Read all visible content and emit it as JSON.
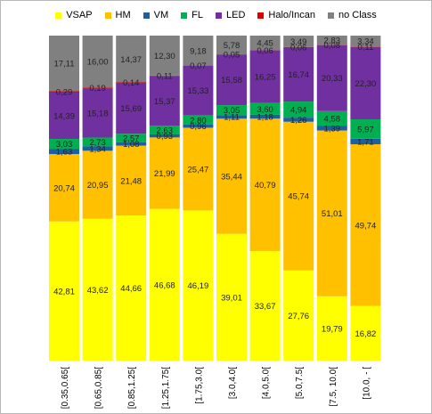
{
  "chart_data": {
    "type": "bar",
    "stacked": true,
    "percent": true,
    "categories": [
      "[0.35,0.65[",
      "[0.65,0.85[",
      "[0.85,1.25[",
      "[1.25,1.75[",
      "[1.75,3.0[",
      "[3.0,4.0[",
      "[4.0,5.0[",
      "[5.0,7.5[",
      "[7.5, 10.0[",
      "[10.0, - ["
    ],
    "series": [
      {
        "name": "VSAP",
        "color": "#ffff00",
        "values": [
          42.81,
          43.62,
          44.66,
          46.68,
          46.19,
          39.01,
          33.67,
          27.76,
          19.79,
          16.82
        ]
      },
      {
        "name": "HM",
        "color": "#ffc000",
        "values": [
          20.74,
          20.95,
          21.48,
          21.99,
          25.47,
          35.44,
          40.79,
          45.74,
          51.01,
          49.74
        ]
      },
      {
        "name": "VM",
        "color": "#1f5fa0",
        "values": [
          1.63,
          1.34,
          1.08,
          0.93,
          0.96,
          1.11,
          1.18,
          1.26,
          1.39,
          1.71
        ]
      },
      {
        "name": "FL",
        "color": "#00b050",
        "values": [
          3.03,
          2.73,
          2.57,
          2.63,
          2.8,
          3.05,
          3.6,
          4.94,
          4.58,
          5.97
        ]
      },
      {
        "name": "LED",
        "color": "#7030a0",
        "values": [
          14.39,
          15.18,
          15.69,
          15.37,
          15.33,
          15.58,
          16.25,
          16.74,
          20.33,
          22.3
        ]
      },
      {
        "name": "Halo/Incan",
        "color": "#e00000",
        "values": [
          0.29,
          0.19,
          0.14,
          0.11,
          0.07,
          0.05,
          0.06,
          0.06,
          0.08,
          0.11
        ]
      },
      {
        "name": "no Class",
        "color": "#808080",
        "values": [
          17.11,
          16.0,
          14.37,
          12.3,
          9.18,
          5.78,
          4.45,
          3.49,
          2.83,
          3.34
        ]
      }
    ],
    "value_labels": [
      [
        "42,81",
        "20,74",
        "1,63",
        "3,03",
        "14,39",
        "0,29",
        "17,11"
      ],
      [
        "43,62",
        "20,95",
        "1,34",
        "2,73",
        "15,18",
        "0,19",
        "16,00"
      ],
      [
        "44,66",
        "21,48",
        "1,08",
        "2,57",
        "15,69",
        "0,14",
        "14,37"
      ],
      [
        "46,68",
        "21,99",
        "0,93",
        "2,63",
        "15,37",
        "0,11",
        "12,30"
      ],
      [
        "46,19",
        "25,47",
        "0,96",
        "2,80",
        "15,33",
        "0,07",
        "9,18"
      ],
      [
        "39,01",
        "35,44",
        "1,11",
        "3,05",
        "15,58",
        "0,05",
        "5,78"
      ],
      [
        "33,67",
        "40,79",
        "1,18",
        "3,60",
        "16,25",
        "0,06",
        "4,45"
      ],
      [
        "27,76",
        "45,74",
        "1,26",
        "4,94",
        "16,74",
        "0,06",
        "3,49"
      ],
      [
        "19,79",
        "51,01",
        "1,39",
        "4,58",
        "20,33",
        "0,08",
        "2,83"
      ],
      [
        "16,82",
        "49,74",
        "1,71",
        "5,97",
        "22,30",
        "0,11",
        "3,34"
      ]
    ],
    "legend_position": "top",
    "grid": false,
    "ylim": [
      0,
      100
    ],
    "title": "",
    "xlabel": "",
    "ylabel": ""
  }
}
